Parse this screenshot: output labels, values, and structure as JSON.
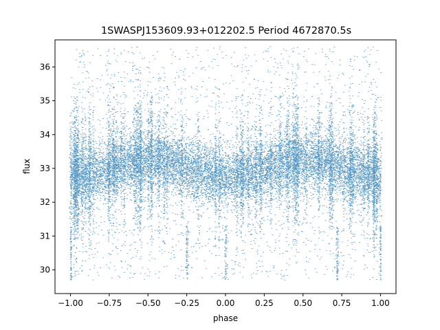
{
  "chart_data": {
    "type": "scatter",
    "title": "1SWASPJ153609.93+012202.5 Period 4672870.5s",
    "xlabel": "phase",
    "ylabel": "flux",
    "xlim": [
      -1.1,
      1.1
    ],
    "ylim": [
      29.3,
      36.8
    ],
    "xticks": [
      -1.0,
      -0.75,
      -0.5,
      -0.25,
      0.0,
      0.25,
      0.5,
      0.75,
      1.0
    ],
    "xtick_labels": [
      "−1.00",
      "−0.75",
      "−0.50",
      "−0.25",
      "0.00",
      "0.25",
      "0.50",
      "0.75",
      "1.00"
    ],
    "yticks": [
      30,
      31,
      32,
      33,
      34,
      35,
      36
    ],
    "ytick_labels": [
      "30",
      "31",
      "32",
      "33",
      "34",
      "35",
      "36"
    ],
    "grid": false,
    "point_color": "#1f77b4",
    "x_range": [
      -1.0,
      1.0
    ],
    "baseline_flux": 33.0,
    "core_flux_range": [
      32.2,
      34.0
    ],
    "scatter_flux_range": [
      29.7,
      36.6
    ],
    "modulation": {
      "peaks_phase": [
        -0.45,
        0.5
      ],
      "troughs_phase": [
        -0.9,
        0.0,
        0.95
      ],
      "amplitude": 0.25
    },
    "dip_phases": [
      -1.0,
      -0.25,
      0.0,
      0.72,
      1.0
    ],
    "dip_flux_min": 29.7,
    "high_streak_phases": [
      -0.88,
      -0.75,
      -0.55,
      0.1,
      0.35,
      0.6,
      0.8
    ]
  }
}
